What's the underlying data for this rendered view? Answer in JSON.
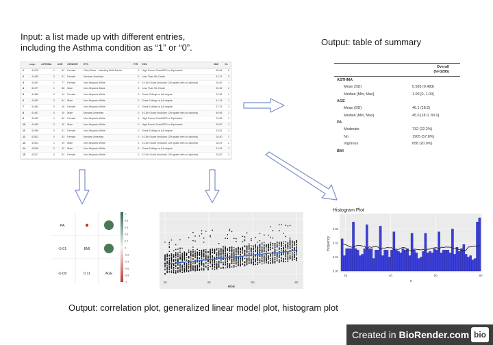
{
  "input_caption": {
    "line1": "Input: a list made up with different entries,",
    "line2": "including the Asthma condition as “1” or “0”."
  },
  "output_summary_caption": "Output: table of summary",
  "output_plots_caption": "Output:  correlation plot, generalized linear model plot, histogram plot",
  "input_table": {
    "headers": [
      "",
      "seqn",
      "ASTHMA",
      "AGE",
      "GENDER",
      "ETH",
      "PIR",
      "EDU",
      "BMI",
      "SL"
    ],
    "rows": [
      [
        "1",
        "41475",
        "1",
        "62",
        "Female",
        "Other Race - Including Multi-Racial",
        "0",
        "High School Grad/GED or Equivalent",
        "58.04",
        "5"
      ],
      [
        "2",
        "41485",
        "0",
        "61",
        "Female",
        "Mexican American",
        "0",
        "Less Than 9th Grade",
        "31.21",
        "5"
      ],
      [
        "3",
        "41491",
        "1",
        "77",
        "Female",
        "Non-Hispanic White",
        "0",
        "9-11th Grade (Includes 12th grade with no diploma)",
        "19.90",
        "1"
      ],
      [
        "4",
        "41477",
        "1",
        "88",
        "Male",
        "Non-Hispanic Black",
        "0",
        "Less Than 9th Grade",
        "26.18",
        "2"
      ],
      [
        "5",
        "41480",
        "0",
        "44",
        "Female",
        "Non-Hispanic White",
        "0",
        "Some College or AA degree",
        "24.93",
        "1"
      ],
      [
        "6",
        "41483",
        "0",
        "54",
        "Male",
        "Non-Hispanic White",
        "0",
        "Some College or AA degree",
        "41.18",
        "1"
      ],
      [
        "7",
        "41484",
        "0",
        "46",
        "Female",
        "Non-Hispanic White",
        "0",
        "Some College or AA degree",
        "37.79",
        "1"
      ],
      [
        "8",
        "41491",
        "0",
        "30",
        "Male",
        "Mexican American",
        "0",
        "9-11th Grade (Includes 12th grade with no diploma)",
        "40.98",
        "1"
      ],
      [
        "9",
        "41492",
        "1",
        "80",
        "Female",
        "Non-Hispanic White",
        "0",
        "High School Grad/GED or Equivalent",
        "24.98",
        "1"
      ],
      [
        "10",
        "41495",
        "0",
        "30",
        "Male",
        "Non-Hispanic White",
        "0",
        "High School Grad/GED or Equivalent",
        "26.02",
        "1"
      ],
      [
        "11",
        "41498",
        "0",
        "41",
        "Female",
        "Non-Hispanic White",
        "0",
        "Some College or AA degree",
        "33.61",
        "1"
      ],
      [
        "12",
        "41502",
        "0",
        "63",
        "Female",
        "Mexican American",
        "0",
        "9-11th Grade (Includes 12th grade with no diploma)",
        "28.40",
        "1"
      ],
      [
        "13",
        "41503",
        "1",
        "49",
        "Male",
        "Non-Hispanic White",
        "0",
        "9-11th Grade (Includes 12th grade with no diploma)",
        "28.29",
        "2"
      ],
      [
        "14",
        "41506",
        "0",
        "42",
        "Male",
        "Non-Hispanic White",
        "0",
        "Some College or AA degree",
        "24.26",
        "1"
      ],
      [
        "15",
        "41517",
        "0",
        "52",
        "Female",
        "Non-Hispanic White",
        "0",
        "9-11th Grade (Includes 12th grade with no diploma)",
        "25.87",
        "1"
      ],
      [
        "16",
        "41527",
        "0",
        "23",
        "Female",
        "Non-Hispanic Black",
        "0",
        "9-11th Grade (Includes 12th grade with no diploma)",
        "24.30",
        "1"
      ]
    ]
  },
  "summary_table": {
    "column_header_line1": "Overall",
    "column_header_line2": "(N=3295)",
    "sections": [
      {
        "name": "ASTHMA",
        "rows": [
          {
            "label": "Mean (SD)",
            "value": "0.585 (0.493)"
          },
          {
            "label": "Median [Min, Max]",
            "value": "1.00 [0, 1.00]"
          }
        ]
      },
      {
        "name": "AGE",
        "rows": [
          {
            "label": "Mean (SD)",
            "value": "46.1 (18.2)"
          },
          {
            "label": "Median [Min, Max]",
            "value": "45.0 [18.0, 80.0]"
          }
        ]
      },
      {
        "name": "PA",
        "rows": [
          {
            "label": "Moderate",
            "value": "732 (22.2%)"
          },
          {
            "label": "No",
            "value": "1905 (57.8%)"
          },
          {
            "label": "Vigorous",
            "value": "658 (20.0%)"
          }
        ]
      },
      {
        "name": "BMI",
        "rows": []
      }
    ]
  },
  "correlation_plot": {
    "labels": [
      "PA",
      "BMI",
      "AGE"
    ],
    "lower_values": [
      "-0.01",
      "-0.08",
      "0.11"
    ],
    "scale_ticks": [
      "1",
      "0.8",
      "0.6",
      "0.4",
      "0.2",
      "0",
      "-0.2",
      "-0.4",
      "-0.6",
      "-0.8",
      "-1"
    ],
    "colors": {
      "positive": "#4a7a55",
      "negative": "#c0392b"
    }
  },
  "glm_plot": {
    "xlabel": "AGE",
    "x_ticks": [
      "20",
      "40",
      "60",
      "80"
    ],
    "line_color": "#2f6fd6"
  },
  "chart_data": {
    "type": "bar",
    "title": "Histogram Plot",
    "xlabel": "x",
    "ylabel": "frequency",
    "x_ticks": [
      "20",
      "40",
      "60",
      "80"
    ],
    "y_ticks": [
      "0.00",
      "0.01",
      "0.02",
      "0.03"
    ],
    "xlim": [
      18,
      80
    ],
    "ylim": [
      0,
      0.04
    ],
    "bar_color": "#3b3fd6",
    "values": [
      0.023,
      0.011,
      0.016,
      0.016,
      0.016,
      0.035,
      0.016,
      0.015,
      0.011,
      0.012,
      0.016,
      0.033,
      0.016,
      0.016,
      0.009,
      0.015,
      0.015,
      0.032,
      0.011,
      0.015,
      0.015,
      0.01,
      0.015,
      0.028,
      0.015,
      0.014,
      0.013,
      0.016,
      0.015,
      0.016,
      0.011,
      0.027,
      0.015,
      0.013,
      0.009,
      0.01,
      0.014,
      0.027,
      0.013,
      0.014,
      0.013,
      0.016,
      0.015,
      0.028,
      0.013,
      0.015,
      0.015,
      0.015,
      0.013,
      0.03,
      0.012,
      0.017,
      0.014,
      0.016,
      0.019,
      0.012,
      0.01,
      0.011,
      0.008,
      0.009,
      0.035,
      0.038
    ]
  },
  "footer": {
    "prefix": "Created in ",
    "brand": "BioRender.com",
    "logo": "bio"
  }
}
